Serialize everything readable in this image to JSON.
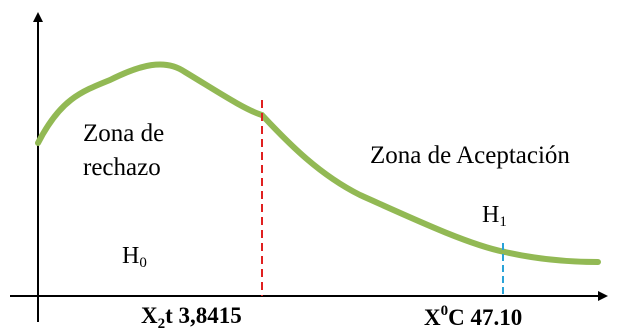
{
  "diagram": {
    "zone_reject_line1": "Zona de",
    "zone_reject_line2": "rechazo",
    "zone_accept": "Zona de Aceptación",
    "h0": {
      "base": "H",
      "sub": "0"
    },
    "h1": {
      "base": "H",
      "sub": "1"
    },
    "critical_label": {
      "pre": "X",
      "sub": "2",
      "post": "t 3,8415"
    },
    "statistic_label": {
      "pre": "X",
      "sup": "0",
      "post": "C 47.10"
    },
    "colors": {
      "curve": "#92b954",
      "critical_line": "#e02020",
      "statistic_line": "#2aa3d8",
      "axes": "#000000"
    }
  }
}
